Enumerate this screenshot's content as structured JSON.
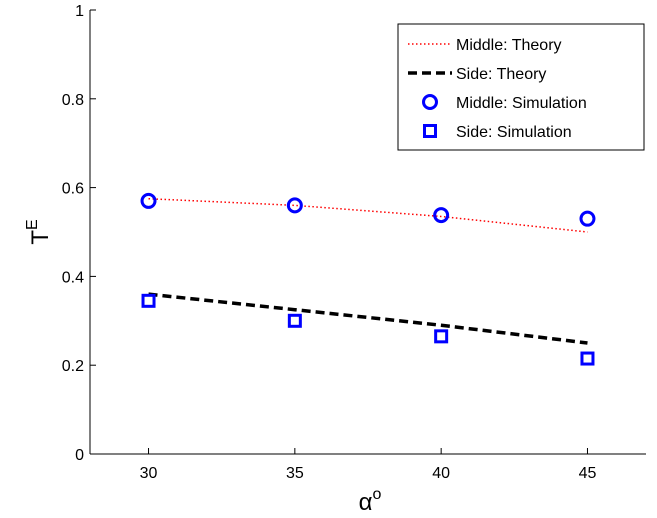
{
  "chart_data": {
    "type": "line",
    "xlabel": {
      "base": "α",
      "sup": "o"
    },
    "ylabel": {
      "base": "T",
      "sup": "E"
    },
    "xlim": [
      28,
      47
    ],
    "ylim": [
      0,
      1
    ],
    "x_ticks": [
      30,
      35,
      40,
      45
    ],
    "y_ticks": [
      0,
      0.2,
      0.4,
      0.6,
      0.8,
      1
    ],
    "y_tick_labels": [
      "0",
      "0.2",
      "0.4",
      "0.6",
      "0.8",
      "1"
    ],
    "grid": false,
    "legend_position": "top-right",
    "series": [
      {
        "name": "Middle: Theory",
        "kind": "line",
        "style": "dotted",
        "color": "#ff0000",
        "x": [
          30,
          35,
          40,
          45
        ],
        "y": [
          0.575,
          0.56,
          0.535,
          0.5
        ]
      },
      {
        "name": "Side: Theory",
        "kind": "line",
        "style": "dashed",
        "color": "#000000",
        "x": [
          30,
          35,
          40,
          45
        ],
        "y": [
          0.36,
          0.325,
          0.29,
          0.25
        ]
      },
      {
        "name": "Middle: Simulation",
        "kind": "marker",
        "marker": "circle",
        "color": "#0000ff",
        "x": [
          30,
          35,
          40,
          45
        ],
        "y": [
          0.57,
          0.56,
          0.538,
          0.53
        ]
      },
      {
        "name": "Side: Simulation",
        "kind": "marker",
        "marker": "square",
        "color": "#0000ff",
        "x": [
          30,
          35,
          40,
          45
        ],
        "y": [
          0.345,
          0.3,
          0.265,
          0.215
        ]
      }
    ]
  }
}
